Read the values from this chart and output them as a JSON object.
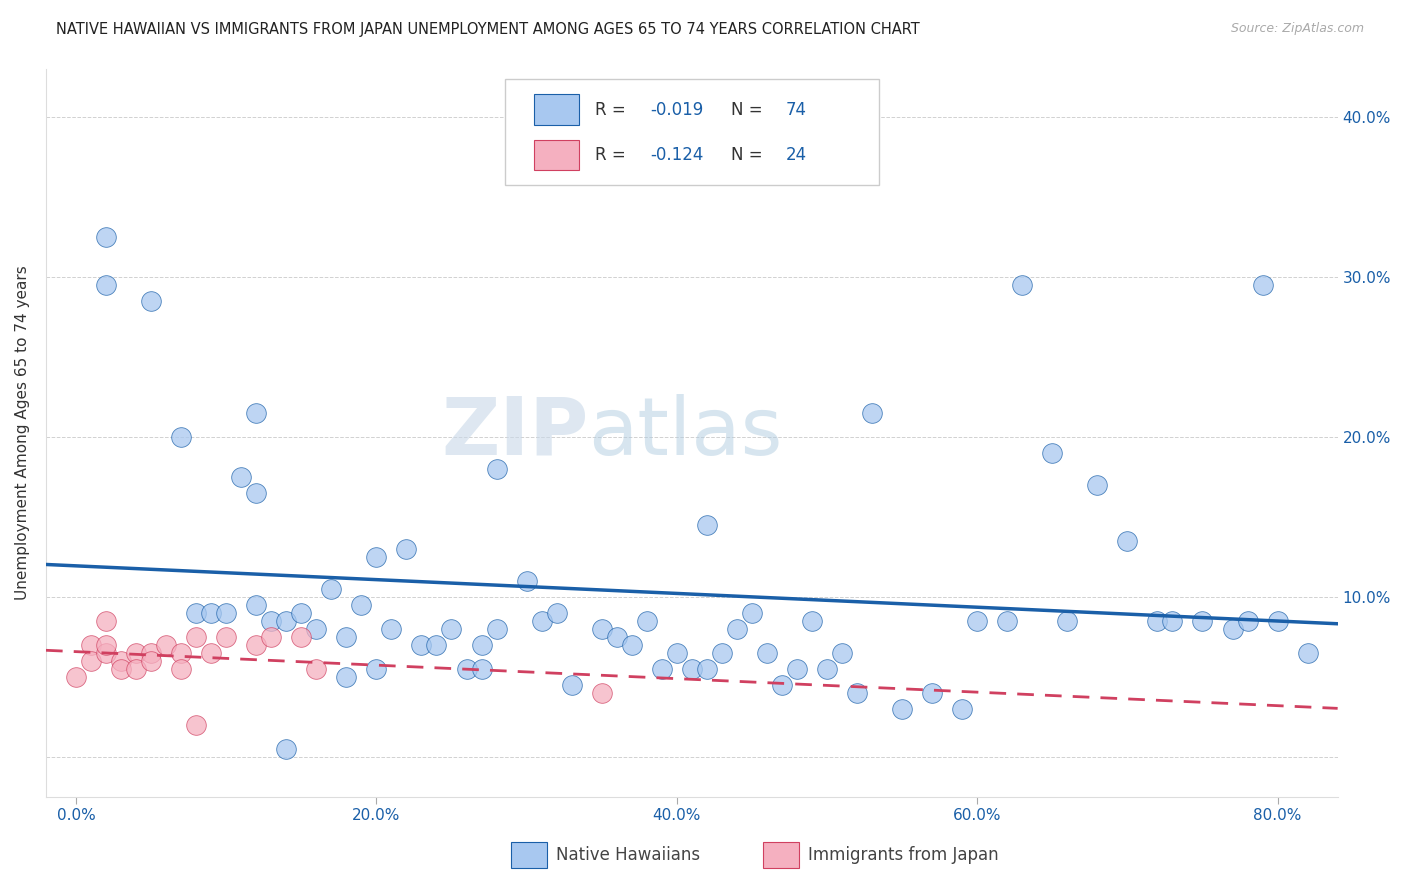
{
  "title": "NATIVE HAWAIIAN VS IMMIGRANTS FROM JAPAN UNEMPLOYMENT AMONG AGES 65 TO 74 YEARS CORRELATION CHART",
  "source": "Source: ZipAtlas.com",
  "xlabel_ticks": [
    "0.0%",
    "20.0%",
    "40.0%",
    "60.0%",
    "80.0%"
  ],
  "ylabel_ticks_right": [
    "40.0%",
    "30.0%",
    "20.0%",
    "10.0%"
  ],
  "xlabel_tick_vals": [
    0.0,
    0.2,
    0.4,
    0.6,
    0.8
  ],
  "ylabel_tick_vals": [
    0.0,
    0.1,
    0.2,
    0.3,
    0.4
  ],
  "ylabel": "Unemployment Among Ages 65 to 74 years",
  "xlim": [
    -0.02,
    0.84
  ],
  "ylim": [
    -0.025,
    0.43
  ],
  "legend_label1": "Native Hawaiians",
  "legend_label2": "Immigrants from Japan",
  "R1": "-0.019",
  "N1": "74",
  "R2": "-0.124",
  "N2": "24",
  "color_blue": "#a8c8f0",
  "color_pink": "#f5b0c0",
  "trend_blue": "#1a5fa8",
  "trend_pink": "#d04060",
  "watermark_zip": "ZIP",
  "watermark_atlas": "atlas",
  "title_fontsize": 10.5,
  "source_fontsize": 9,
  "blue_points_x": [
    0.02,
    0.02,
    0.05,
    0.07,
    0.08,
    0.09,
    0.1,
    0.11,
    0.12,
    0.12,
    0.13,
    0.14,
    0.14,
    0.15,
    0.16,
    0.17,
    0.18,
    0.18,
    0.19,
    0.2,
    0.2,
    0.21,
    0.22,
    0.23,
    0.24,
    0.25,
    0.26,
    0.27,
    0.27,
    0.28,
    0.28,
    0.3,
    0.31,
    0.33,
    0.35,
    0.36,
    0.37,
    0.38,
    0.39,
    0.4,
    0.41,
    0.42,
    0.43,
    0.44,
    0.45,
    0.46,
    0.47,
    0.48,
    0.49,
    0.5,
    0.51,
    0.52,
    0.55,
    0.57,
    0.59,
    0.6,
    0.62,
    0.63,
    0.65,
    0.66,
    0.68,
    0.7,
    0.72,
    0.73,
    0.75,
    0.77,
    0.78,
    0.79,
    0.8,
    0.82,
    0.12,
    0.32,
    0.42,
    0.53
  ],
  "blue_points_y": [
    0.325,
    0.295,
    0.285,
    0.2,
    0.09,
    0.09,
    0.09,
    0.175,
    0.165,
    0.095,
    0.085,
    0.085,
    0.005,
    0.09,
    0.08,
    0.105,
    0.05,
    0.075,
    0.095,
    0.125,
    0.055,
    0.08,
    0.13,
    0.07,
    0.07,
    0.08,
    0.055,
    0.055,
    0.07,
    0.18,
    0.08,
    0.11,
    0.085,
    0.045,
    0.08,
    0.075,
    0.07,
    0.085,
    0.055,
    0.065,
    0.055,
    0.055,
    0.065,
    0.08,
    0.09,
    0.065,
    0.045,
    0.055,
    0.085,
    0.055,
    0.065,
    0.04,
    0.03,
    0.04,
    0.03,
    0.085,
    0.085,
    0.295,
    0.19,
    0.085,
    0.17,
    0.135,
    0.085,
    0.085,
    0.085,
    0.08,
    0.085,
    0.295,
    0.085,
    0.065,
    0.215,
    0.09,
    0.145,
    0.215
  ],
  "pink_points_x": [
    0.0,
    0.01,
    0.01,
    0.02,
    0.02,
    0.02,
    0.03,
    0.03,
    0.04,
    0.04,
    0.05,
    0.05,
    0.06,
    0.07,
    0.07,
    0.08,
    0.08,
    0.09,
    0.1,
    0.12,
    0.13,
    0.15,
    0.16,
    0.35
  ],
  "pink_points_y": [
    0.05,
    0.07,
    0.06,
    0.065,
    0.07,
    0.085,
    0.06,
    0.055,
    0.065,
    0.055,
    0.065,
    0.06,
    0.07,
    0.065,
    0.055,
    0.075,
    0.02,
    0.065,
    0.075,
    0.07,
    0.075,
    0.075,
    0.055,
    0.04
  ]
}
